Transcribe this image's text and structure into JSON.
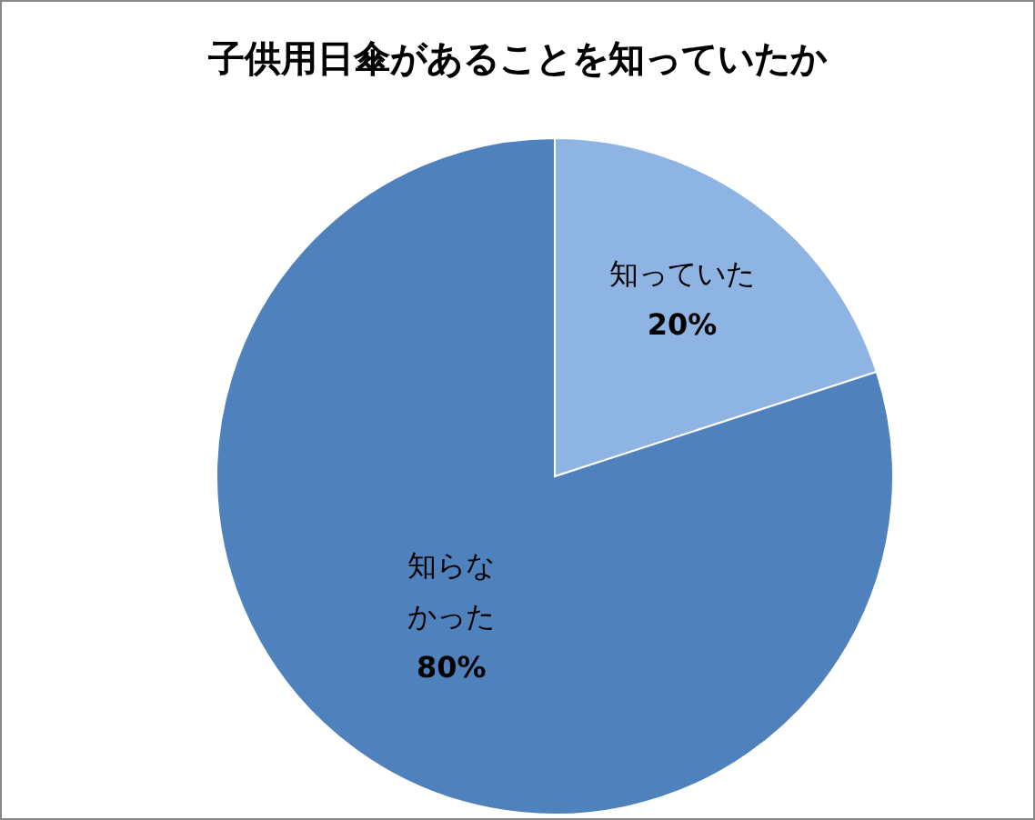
{
  "chart_data": {
    "type": "pie",
    "title": "子供用日傘があることを知っていたか",
    "categories": [
      "知っていた",
      "知らなかった"
    ],
    "values": [
      20,
      80
    ],
    "colors": [
      "#8eb4e3",
      "#4f81bd"
    ],
    "value_labels": [
      "20%",
      "80%"
    ]
  }
}
